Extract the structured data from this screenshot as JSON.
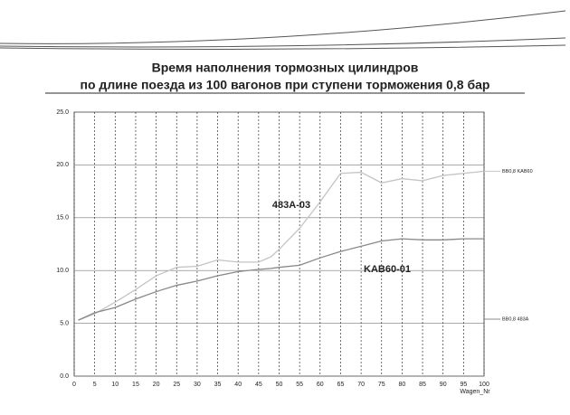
{
  "chart_data": {
    "type": "line",
    "title": "Время наполнения тормозных цилиндров",
    "subtitle": "по длине поезда из 100 вагонов при ступени торможения 0,8 бар",
    "x_label": "Wagen_Nr",
    "annotations": [
      "483A-03",
      "KAB60-01"
    ],
    "x": [
      1,
      5,
      10,
      15,
      20,
      25,
      30,
      35,
      40,
      45,
      48,
      50,
      55,
      60,
      65,
      70,
      75,
      80,
      85,
      90,
      95,
      100
    ],
    "series": [
      {
        "name": "BB0,8 KAB60",
        "color": "#c4c4c4",
        "values": [
          5.3,
          5.9,
          7.0,
          8.2,
          9.5,
          10.3,
          10.4,
          11.0,
          10.8,
          10.8,
          11.3,
          12.0,
          14.0,
          16.5,
          19.2,
          19.3,
          18.3,
          18.7,
          18.5,
          19.0,
          19.2,
          19.4
        ]
      },
      {
        "name": "BB0,8 483A",
        "color": "#888888",
        "values": [
          5.3,
          6.0,
          6.5,
          7.3,
          8.0,
          8.6,
          9.0,
          9.5,
          9.9,
          10.1,
          10.2,
          10.3,
          10.5,
          11.2,
          11.8,
          12.3,
          12.8,
          13.0,
          12.9,
          12.9,
          13.0,
          13.0
        ]
      }
    ],
    "xlim": [
      0,
      100
    ],
    "xticks": [
      0,
      5,
      10,
      15,
      20,
      25,
      30,
      35,
      40,
      45,
      50,
      55,
      60,
      65,
      70,
      75,
      80,
      85,
      90,
      95,
      100
    ],
    "ylim": [
      0,
      25
    ],
    "yticks": [
      {
        "value": 0,
        "label": "0.0"
      },
      {
        "value": 5,
        "label": "5.0"
      },
      {
        "value": 10,
        "label": "10.0"
      },
      {
        "value": 15,
        "label": "15.0"
      },
      {
        "value": 20,
        "label": "20.0"
      },
      {
        "value": 25,
        "label": "25.0"
      }
    ],
    "grid": true
  }
}
